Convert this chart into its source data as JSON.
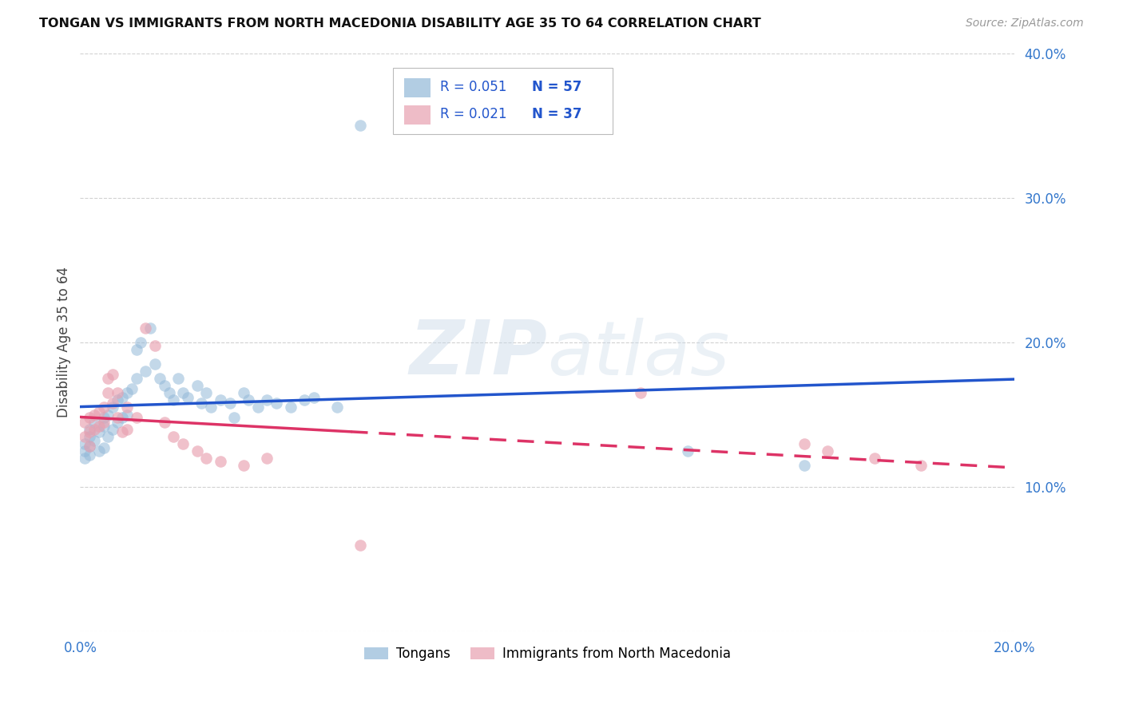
{
  "title": "TONGAN VS IMMIGRANTS FROM NORTH MACEDONIA DISABILITY AGE 35 TO 64 CORRELATION CHART",
  "source": "Source: ZipAtlas.com",
  "ylabel": "Disability Age 35 to 64",
  "xlim": [
    0.0,
    0.2
  ],
  "ylim": [
    0.0,
    0.4
  ],
  "blue_color": "#92b8d8",
  "pink_color": "#e8a0b0",
  "line_blue": "#2255cc",
  "line_pink": "#dd3366",
  "watermark_text": "ZIPatlas",
  "tongan_x": [
    0.001,
    0.001,
    0.001,
    0.002,
    0.002,
    0.002,
    0.002,
    0.003,
    0.003,
    0.004,
    0.004,
    0.005,
    0.005,
    0.005,
    0.006,
    0.006,
    0.007,
    0.007,
    0.008,
    0.008,
    0.009,
    0.009,
    0.01,
    0.01,
    0.011,
    0.012,
    0.012,
    0.013,
    0.014,
    0.015,
    0.016,
    0.017,
    0.018,
    0.019,
    0.02,
    0.021,
    0.022,
    0.023,
    0.025,
    0.026,
    0.027,
    0.028,
    0.03,
    0.032,
    0.033,
    0.035,
    0.036,
    0.038,
    0.04,
    0.042,
    0.045,
    0.048,
    0.05,
    0.055,
    0.06,
    0.13,
    0.155
  ],
  "tongan_y": [
    0.13,
    0.125,
    0.12,
    0.14,
    0.135,
    0.128,
    0.122,
    0.145,
    0.132,
    0.138,
    0.125,
    0.148,
    0.142,
    0.127,
    0.15,
    0.135,
    0.155,
    0.14,
    0.16,
    0.145,
    0.162,
    0.148,
    0.165,
    0.15,
    0.168,
    0.195,
    0.175,
    0.2,
    0.18,
    0.21,
    0.185,
    0.175,
    0.17,
    0.165,
    0.16,
    0.175,
    0.165,
    0.162,
    0.17,
    0.158,
    0.165,
    0.155,
    0.16,
    0.158,
    0.148,
    0.165,
    0.16,
    0.155,
    0.16,
    0.158,
    0.155,
    0.16,
    0.162,
    0.155,
    0.35,
    0.125,
    0.115
  ],
  "macedonia_x": [
    0.001,
    0.001,
    0.002,
    0.002,
    0.002,
    0.003,
    0.003,
    0.004,
    0.004,
    0.005,
    0.005,
    0.006,
    0.006,
    0.007,
    0.007,
    0.008,
    0.008,
    0.009,
    0.01,
    0.01,
    0.012,
    0.014,
    0.016,
    0.018,
    0.02,
    0.022,
    0.025,
    0.027,
    0.03,
    0.035,
    0.04,
    0.06,
    0.12,
    0.155,
    0.16,
    0.17,
    0.18
  ],
  "macedonia_y": [
    0.145,
    0.135,
    0.148,
    0.138,
    0.128,
    0.15,
    0.14,
    0.152,
    0.142,
    0.155,
    0.145,
    0.175,
    0.165,
    0.178,
    0.158,
    0.165,
    0.148,
    0.138,
    0.155,
    0.14,
    0.148,
    0.21,
    0.198,
    0.145,
    0.135,
    0.13,
    0.125,
    0.12,
    0.118,
    0.115,
    0.12,
    0.06,
    0.165,
    0.13,
    0.125,
    0.12,
    0.115
  ],
  "background_color": "#ffffff",
  "grid_color": "#cccccc"
}
